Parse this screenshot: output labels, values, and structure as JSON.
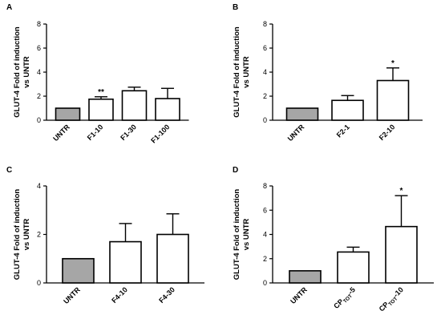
{
  "figure": {
    "colors": {
      "control_fill": "#a6a6a6",
      "bar_fill": "#ffffff",
      "stroke": "#000000"
    }
  },
  "chart_data": [
    {
      "panel": "A",
      "type": "bar",
      "ylabel_lines": [
        "GLUT-4 Fold of induction",
        "vs UNTR"
      ],
      "ylim": [
        0,
        8
      ],
      "yticks": [
        0,
        2,
        4,
        6,
        8
      ],
      "categories": [
        "UNTR",
        "F1-10",
        "F1-30",
        "F1-100"
      ],
      "values": [
        1.0,
        1.75,
        2.45,
        1.8
      ],
      "errors": [
        0,
        0.2,
        0.3,
        0.85
      ],
      "significance": [
        "",
        "**",
        "",
        ""
      ]
    },
    {
      "panel": "B",
      "type": "bar",
      "ylabel_lines": [
        "GLUT-4 Fold of induction",
        "vs UNTR"
      ],
      "ylim": [
        0,
        8
      ],
      "yticks": [
        0,
        2,
        4,
        6,
        8
      ],
      "categories": [
        "UNTR",
        "F2-1",
        "F2-10"
      ],
      "values": [
        1.0,
        1.65,
        3.3
      ],
      "errors": [
        0,
        0.4,
        1.05
      ],
      "significance": [
        "",
        "",
        "*"
      ]
    },
    {
      "panel": "C",
      "type": "bar",
      "ylabel_lines": [
        "GLUT-4 Fold of induction",
        "vs UNTR"
      ],
      "ylim": [
        0,
        4
      ],
      "yticks": [
        0,
        2,
        4
      ],
      "categories": [
        "UNTR",
        "F4-10",
        "F4-30"
      ],
      "values": [
        1.0,
        1.7,
        2.0
      ],
      "errors": [
        0,
        0.75,
        0.85
      ],
      "significance": [
        "",
        "",
        ""
      ]
    },
    {
      "panel": "D",
      "type": "bar",
      "ylabel_lines": [
        "GLUT-4 Fold of induction",
        "vs UNTR"
      ],
      "ylim": [
        0,
        8
      ],
      "yticks": [
        0,
        2,
        4,
        6,
        8
      ],
      "categories": [
        "UNTR",
        "CPTOT-5",
        "CPTOT-10"
      ],
      "category_parts": [
        [
          "UNTR",
          ""
        ],
        [
          "CP",
          "TOT",
          "-5"
        ],
        [
          "CP",
          "TOT",
          "-10"
        ]
      ],
      "values": [
        1.0,
        2.55,
        4.65
      ],
      "errors": [
        0,
        0.4,
        2.55
      ],
      "significance": [
        "",
        "",
        "*"
      ]
    }
  ]
}
